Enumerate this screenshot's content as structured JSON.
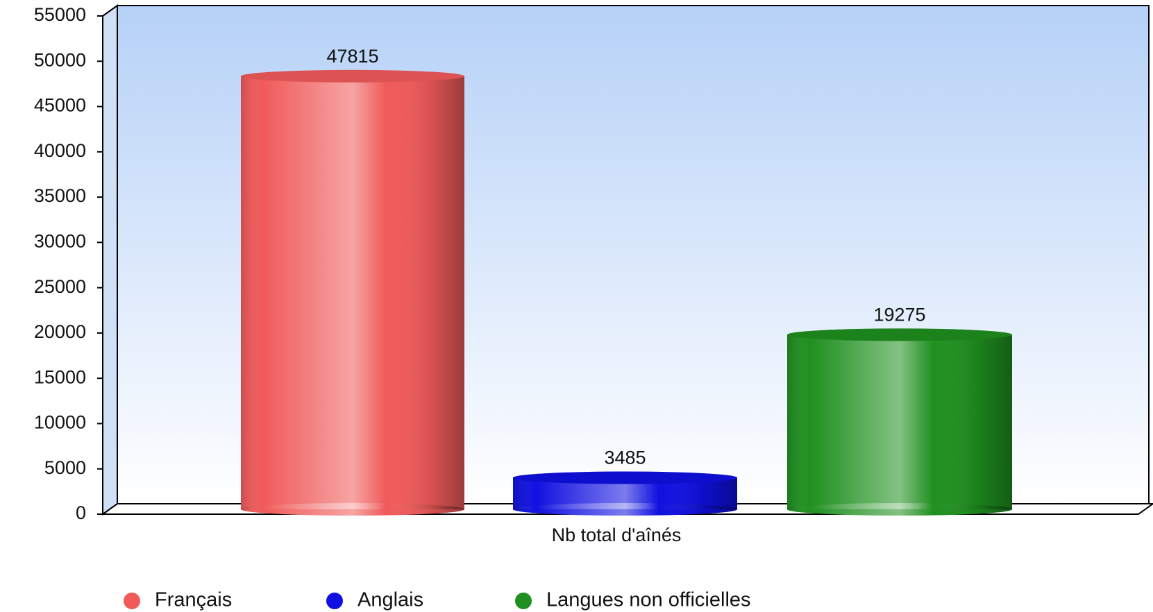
{
  "chart_data": {
    "type": "bar",
    "categories": [
      "Nb total d'aînés"
    ],
    "series": [
      {
        "name": "Français",
        "color": "#f05a5a",
        "values": [
          47815
        ]
      },
      {
        "name": "Anglais",
        "color": "#1010e0",
        "values": [
          3485
        ]
      },
      {
        "name": "Langues non officielles",
        "color": "#1f8f1f",
        "values": [
          19275
        ]
      }
    ],
    "ylim": [
      0,
      55000
    ],
    "yticks": [
      0,
      5000,
      10000,
      15000,
      20000,
      25000,
      30000,
      35000,
      40000,
      45000,
      50000,
      55000
    ],
    "legend": "bottom"
  }
}
